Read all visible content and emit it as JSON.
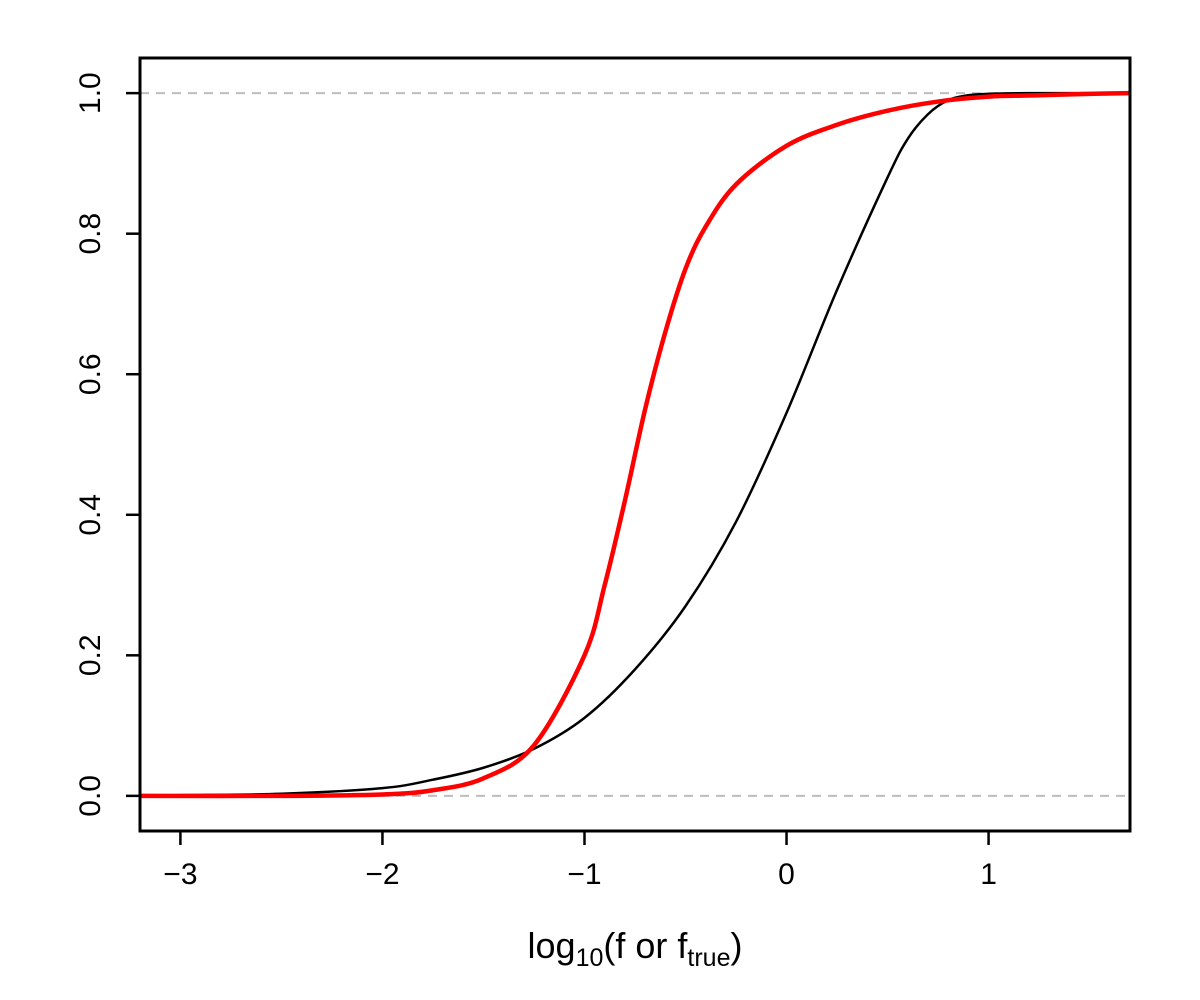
{
  "chart_data": {
    "type": "line",
    "title": "",
    "xlabel": {
      "parts": [
        {
          "text": "log",
          "sub": false
        },
        {
          "text": "10",
          "sub": true
        },
        {
          "text": "(f or f",
          "sub": false
        },
        {
          "text": "true",
          "sub": true
        },
        {
          "text": ")",
          "sub": false
        }
      ]
    },
    "ylabel": "",
    "xlim": [
      -3.2,
      1.7
    ],
    "ylim": [
      -0.05,
      1.05
    ],
    "xticks": [
      -3,
      -2,
      -1,
      0,
      1
    ],
    "xtick_labels": [
      "−3",
      "−2",
      "−1",
      "0",
      "1"
    ],
    "yticks": [
      0.0,
      0.2,
      0.4,
      0.6,
      0.8,
      1.0
    ],
    "ytick_labels": [
      "0.0",
      "0.2",
      "0.4",
      "0.6",
      "0.8",
      "1.0"
    ],
    "grid": false,
    "legend": "none",
    "reference_lines": [
      {
        "axis": "y",
        "value": 0.0,
        "style": "dashed",
        "color": "#bdbdbd"
      },
      {
        "axis": "y",
        "value": 1.0,
        "style": "dashed",
        "color": "#bdbdbd"
      }
    ],
    "series": [
      {
        "color": "#000000",
        "x": [
          -3.2,
          -3.0,
          -2.5,
          -2.0,
          -1.75,
          -1.5,
          -1.25,
          -1.0,
          -0.75,
          -0.5,
          -0.25,
          0.0,
          0.25,
          0.5,
          0.6,
          0.7,
          0.8,
          0.9,
          1.0,
          1.2,
          1.5,
          1.7
        ],
        "y": [
          0.0,
          0.001,
          0.003,
          0.011,
          0.023,
          0.04,
          0.067,
          0.111,
          0.18,
          0.27,
          0.39,
          0.545,
          0.72,
          0.88,
          0.935,
          0.97,
          0.99,
          0.997,
          0.999,
          1.0,
          1.0,
          1.0
        ]
      },
      {
        "color": "#ff0000",
        "x": [
          -3.2,
          -2.5,
          -2.0,
          -1.75,
          -1.5,
          -1.25,
          -1.0,
          -0.9,
          -0.8,
          -0.7,
          -0.6,
          -0.5,
          -0.4,
          -0.25,
          0.0,
          0.25,
          0.5,
          0.75,
          1.0,
          1.25,
          1.5,
          1.7
        ],
        "y": [
          0.0,
          0.0,
          0.002,
          0.008,
          0.025,
          0.072,
          0.2,
          0.3,
          0.42,
          0.55,
          0.66,
          0.75,
          0.81,
          0.87,
          0.925,
          0.955,
          0.975,
          0.988,
          0.995,
          0.997,
          0.999,
          1.0
        ]
      }
    ]
  }
}
